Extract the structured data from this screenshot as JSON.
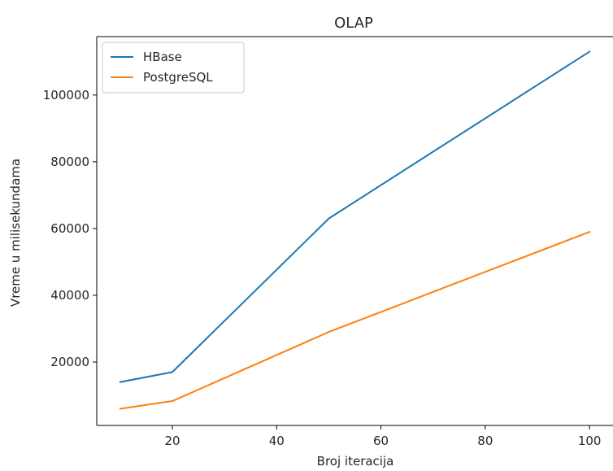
{
  "chart_data": {
    "type": "line",
    "title": "OLAP",
    "xlabel": "Broj iteracija",
    "ylabel": "Vreme u milisekundama",
    "xlim": [
      5.5,
      104.5
    ],
    "ylim": [
      1000,
      117500
    ],
    "xticks": [
      20,
      40,
      60,
      80,
      100
    ],
    "yticks": [
      20000,
      40000,
      60000,
      80000,
      100000
    ],
    "x": [
      10,
      20,
      50,
      100
    ],
    "series": [
      {
        "name": "HBase",
        "color": "#1f77b4",
        "values": [
          14000,
          17000,
          63000,
          113000
        ]
      },
      {
        "name": "PostgreSQL",
        "color": "#ff7f0e",
        "values": [
          6000,
          8300,
          29000,
          59000
        ]
      }
    ],
    "legend": "top-left",
    "grid": false
  }
}
